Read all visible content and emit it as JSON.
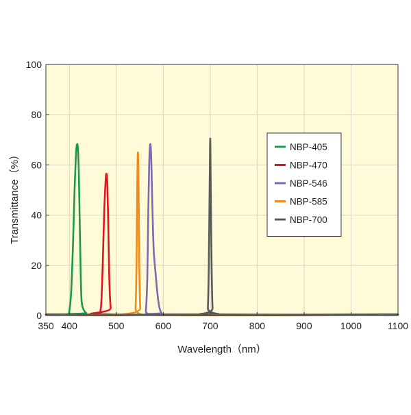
{
  "chart_data": {
    "type": "line",
    "xlabel": "Wavelength（nm）",
    "ylabel": "Transmittance（%）",
    "xlim": [
      350,
      1100
    ],
    "ylim": [
      0,
      100
    ],
    "x_ticks": [
      350,
      400,
      500,
      600,
      700,
      800,
      900,
      1000,
      1100
    ],
    "x_tick_labels": [
      "350",
      "400",
      "500",
      "600",
      "700",
      "800",
      "900",
      "1000",
      "1100"
    ],
    "y_ticks": [
      0,
      20,
      40,
      60,
      80,
      100
    ],
    "y_tick_labels": [
      "0",
      "20",
      "40",
      "60",
      "80",
      "100"
    ],
    "grid": true,
    "legend_position": "right",
    "background_color": "#fffbd9",
    "series": [
      {
        "name": "NBP-405",
        "color": "#1a9a4a",
        "x": [
          350,
          395,
          400,
          404,
          408,
          411,
          414,
          416,
          418,
          420,
          422,
          424,
          426,
          430,
          436,
          445,
          1100
        ],
        "y": [
          0.3,
          0.5,
          2,
          10,
          30,
          50,
          64,
          68,
          67,
          58,
          38,
          18,
          6,
          2.5,
          1,
          0.4,
          0.3
        ]
      },
      {
        "name": "NBP-470",
        "color": "#e0141e",
        "x": [
          350,
          460,
          465,
          468,
          471,
          474,
          477,
          479,
          481,
          483,
          485,
          488,
          492,
          1100
        ],
        "y": [
          0.3,
          0.3,
          1,
          5,
          20,
          40,
          53,
          56.5,
          52,
          35,
          15,
          3,
          0.4,
          0.3
        ]
      },
      {
        "name": "NBP-546",
        "color": "#7a6aae",
        "x": [
          350,
          560,
          563,
          566,
          568,
          570,
          572,
          574,
          576,
          578,
          580,
          584,
          588,
          592,
          596,
          600,
          1100
        ],
        "y": [
          0.3,
          0.3,
          2,
          15,
          40,
          60,
          68,
          65,
          50,
          35,
          25,
          16,
          8,
          3,
          1,
          0.5,
          0.3
        ]
      },
      {
        "name": "NBP-585",
        "color": "#f08a1a",
        "x": [
          350,
          538,
          541,
          543,
          544.5,
          546,
          547.5,
          549,
          551,
          554,
          1100
        ],
        "y": [
          0.3,
          0.3,
          3,
          20,
          50,
          65,
          50,
          20,
          3,
          0.3,
          0.3
        ]
      },
      {
        "name": "NBP-700",
        "color": "#5a5a5a",
        "x": [
          350,
          692,
          695,
          697,
          699,
          700,
          701,
          703,
          705,
          708,
          1100
        ],
        "y": [
          0.5,
          0.5,
          3,
          20,
          55,
          70.5,
          55,
          20,
          3,
          0.5,
          0.5
        ]
      }
    ]
  }
}
